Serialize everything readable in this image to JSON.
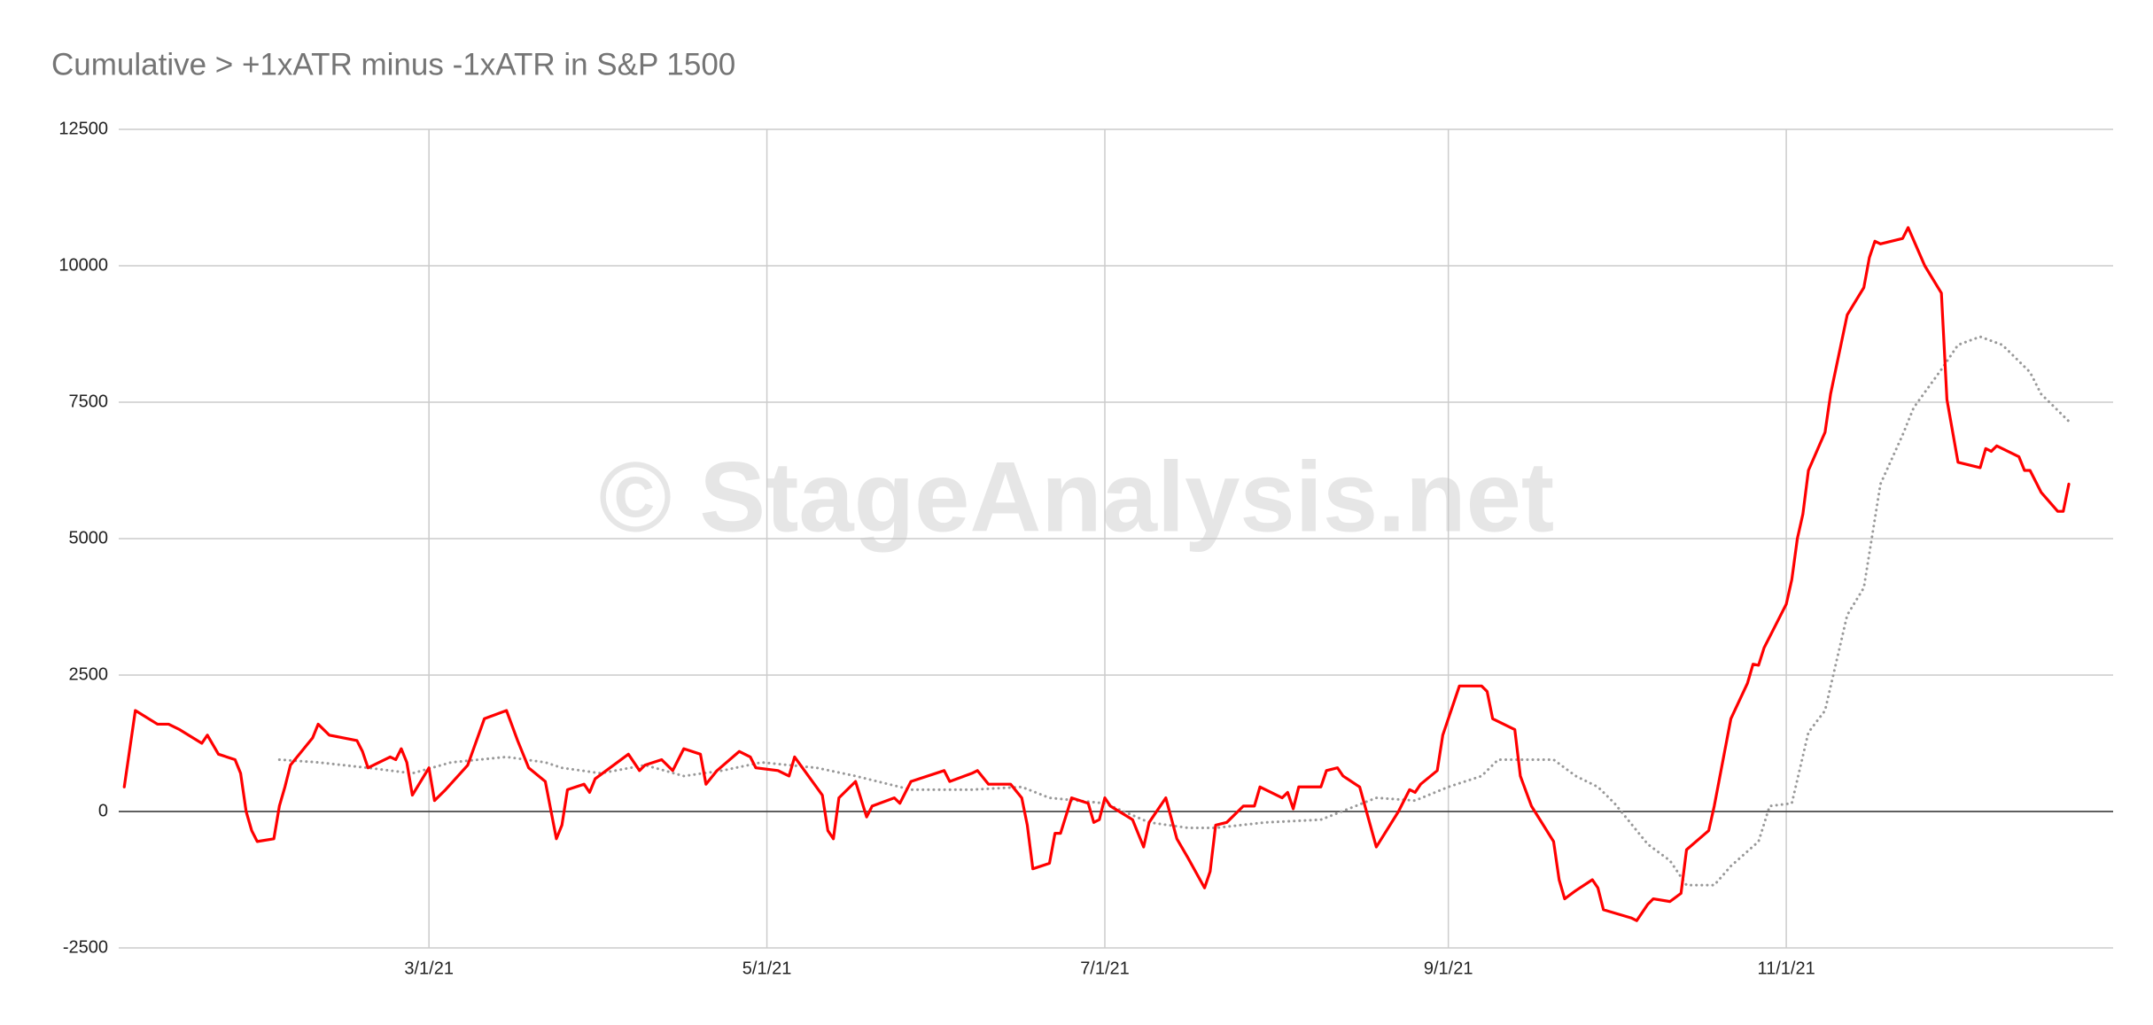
{
  "chart_data": {
    "type": "line",
    "title": "Cumulative > +1xATR minus -1xATR in S&P 1500",
    "watermark": "© StageAnalysis.net",
    "xlim": [
      "1/4/21",
      "12/30/21"
    ],
    "xticks": [
      "3/1/21",
      "5/1/21",
      "7/1/21",
      "9/1/21",
      "11/1/21"
    ],
    "ylim": [
      -2500,
      12500
    ],
    "yticks": [
      -2500,
      0,
      2500,
      5000,
      7500,
      10000,
      12500
    ],
    "grid": true,
    "series": [
      {
        "color": "#ff0000",
        "style": "solid",
        "x": [
          "1/5/21",
          "1/7/21",
          "1/11/21",
          "1/13/21",
          "1/15/21",
          "1/19/21",
          "1/20/21",
          "1/22/21",
          "1/25/21",
          "1/26/21",
          "1/27/21",
          "1/28/21",
          "1/29/21",
          "2/1/21",
          "2/2/21",
          "2/3/21",
          "2/4/21",
          "2/8/21",
          "2/9/21",
          "2/11/21",
          "2/16/21",
          "2/17/21",
          "2/18/21",
          "2/22/21",
          "2/23/21",
          "2/24/21",
          "2/25/21",
          "2/26/21",
          "3/1/21",
          "3/2/21",
          "3/4/21",
          "3/8/21",
          "3/11/21",
          "3/15/21",
          "3/17/21",
          "3/19/21",
          "3/22/21",
          "3/24/21",
          "3/25/21",
          "3/26/21",
          "3/29/21",
          "3/30/21",
          "3/31/21",
          "4/6/21",
          "4/8/21",
          "4/9/21",
          "4/12/21",
          "4/14/21",
          "4/16/21",
          "4/19/21",
          "4/20/21",
          "4/22/21",
          "4/26/21",
          "4/28/21",
          "4/29/21",
          "5/3/21",
          "5/4/21",
          "5/5/21",
          "5/6/21",
          "5/11/21",
          "5/12/21",
          "5/13/21",
          "5/14/21",
          "5/17/21",
          "5/19/21",
          "5/20/21",
          "5/24/21",
          "5/25/21",
          "5/27/21",
          "6/2/21",
          "6/3/21",
          "6/7/21",
          "6/8/21",
          "6/10/21",
          "6/14/21",
          "6/16/21",
          "6/17/21",
          "6/18/21",
          "6/21/21",
          "6/22/21",
          "6/23/21",
          "6/25/21",
          "6/28/21",
          "6/29/21",
          "6/30/21",
          "7/1/21",
          "7/2/21",
          "7/6/21",
          "7/8/21",
          "7/9/21",
          "7/12/21",
          "7/14/21",
          "7/16/21",
          "7/19/21",
          "7/20/21",
          "7/21/21",
          "7/23/21",
          "7/26/21",
          "7/28/21",
          "7/29/21",
          "8/2/21",
          "8/3/21",
          "8/4/21",
          "8/5/21",
          "8/9/21",
          "8/10/21",
          "8/12/21",
          "8/13/21",
          "8/16/21",
          "8/19/21",
          "8/23/21",
          "8/25/21",
          "8/26/21",
          "8/27/21",
          "8/30/21",
          "8/31/21",
          "9/2/21",
          "9/3/21",
          "9/7/21",
          "9/8/21",
          "9/9/21",
          "9/13/21",
          "9/14/21",
          "9/16/21",
          "9/20/21",
          "9/21/21",
          "9/22/21",
          "9/24/21",
          "9/27/21",
          "9/28/21",
          "9/29/21",
          "10/4/21",
          "10/5/21",
          "10/7/21",
          "10/8/21",
          "10/11/21",
          "10/13/21",
          "10/14/21",
          "10/18/21",
          "10/19/21",
          "10/22/21",
          "10/25/21",
          "10/26/21",
          "10/27/21",
          "10/28/21",
          "11/1/21",
          "11/2/21",
          "11/3/21",
          "11/4/21",
          "11/5/21",
          "11/8/21",
          "11/9/21",
          "11/12/21",
          "11/15/21",
          "11/16/21",
          "11/17/21",
          "11/18/21",
          "11/22/21",
          "11/23/21",
          "11/26/21",
          "11/29/21",
          "11/30/21",
          "12/2/21",
          "12/6/21",
          "12/7/21",
          "12/8/21",
          "12/9/21",
          "12/13/21",
          "12/14/21",
          "12/15/21",
          "12/17/21",
          "12/20/21",
          "12/21/21",
          "12/22/21"
        ],
        "values": [
          450,
          1850,
          1600,
          1600,
          1500,
          1250,
          1400,
          1050,
          950,
          700,
          0,
          -350,
          -550,
          -500,
          100,
          450,
          850,
          1350,
          1600,
          1400,
          1300,
          1100,
          800,
          1000,
          950,
          1150,
          900,
          300,
          800,
          200,
          400,
          850,
          1700,
          1850,
          1300,
          800,
          550,
          -500,
          -250,
          400,
          500,
          350,
          600,
          1050,
          750,
          850,
          950,
          750,
          1150,
          1050,
          500,
          750,
          1100,
          1000,
          800,
          750,
          700,
          650,
          1000,
          300,
          -350,
          -500,
          250,
          550,
          -100,
          100,
          250,
          150,
          550,
          750,
          550,
          700,
          750,
          500,
          500,
          250,
          -250,
          -1050,
          -950,
          -400,
          -400,
          250,
          150,
          -200,
          -150,
          250,
          100,
          -150,
          -650,
          -200,
          250,
          -500,
          -850,
          -1400,
          -1100,
          -250,
          -200,
          100,
          100,
          450,
          250,
          350,
          50,
          450,
          450,
          750,
          800,
          650,
          450,
          -650,
          0,
          400,
          350,
          500,
          750,
          1400,
          2000,
          2300,
          2300,
          2200,
          1700,
          1500,
          650,
          100,
          -550,
          -1250,
          -1600,
          -1450,
          -1250,
          -1400,
          -1800,
          -1950,
          -2000,
          -1700,
          -1600,
          -1650,
          -1500,
          -700,
          -350,
          100,
          1700,
          2350,
          2700,
          2680,
          3000,
          3800,
          4250,
          5000,
          5450,
          6250,
          6950,
          7650,
          9100,
          9600,
          10150,
          10450,
          10400,
          10500,
          10700,
          10000,
          9500,
          7550,
          6400,
          6300,
          6650,
          6600,
          6700,
          6500,
          6250,
          6250,
          5850,
          5500,
          5500,
          6000
        ]
      },
      {
        "color": "#999999",
        "style": "dotted",
        "x": [
          "2/2/21",
          "2/9/21",
          "2/18/21",
          "2/26/21",
          "3/5/21",
          "3/15/21",
          "3/22/21",
          "3/25/21",
          "4/1/21",
          "4/9/21",
          "4/16/21",
          "4/23/21",
          "4/30/21",
          "5/10/21",
          "5/17/21",
          "5/27/21",
          "6/7/21",
          "6/16/21",
          "6/21/21",
          "7/1/21",
          "7/9/21",
          "7/16/21",
          "7/21/21",
          "7/30/21",
          "8/9/21",
          "8/19/21",
          "8/26/21",
          "9/1/21",
          "9/7/21",
          "9/10/21",
          "9/20/21",
          "9/24/21",
          "9/28/21",
          "10/1/21",
          "10/7/21",
          "10/11/21",
          "10/14/21",
          "10/19/21",
          "10/22/21",
          "10/27/21",
          "10/29/21",
          "11/2/21",
          "11/5/21",
          "11/8/21",
          "11/12/21",
          "11/15/21",
          "11/18/21",
          "11/22/21",
          "11/24/21",
          "11/29/21",
          "12/2/21",
          "12/6/21",
          "12/10/21",
          "12/15/21",
          "12/17/21",
          "12/22/21"
        ],
        "values": [
          950,
          900,
          800,
          700,
          900,
          1000,
          900,
          800,
          700,
          850,
          650,
          750,
          900,
          800,
          650,
          400,
          400,
          450,
          250,
          150,
          -200,
          -300,
          -300,
          -200,
          -150,
          250,
          200,
          450,
          650,
          950,
          950,
          650,
          450,
          150,
          -600,
          -900,
          -1350,
          -1350,
          -1000,
          -550,
          100,
          150,
          1450,
          1850,
          3600,
          4100,
          6000,
          6900,
          7400,
          8100,
          8550,
          8700,
          8550,
          8050,
          7650,
          7150
        ]
      }
    ]
  }
}
